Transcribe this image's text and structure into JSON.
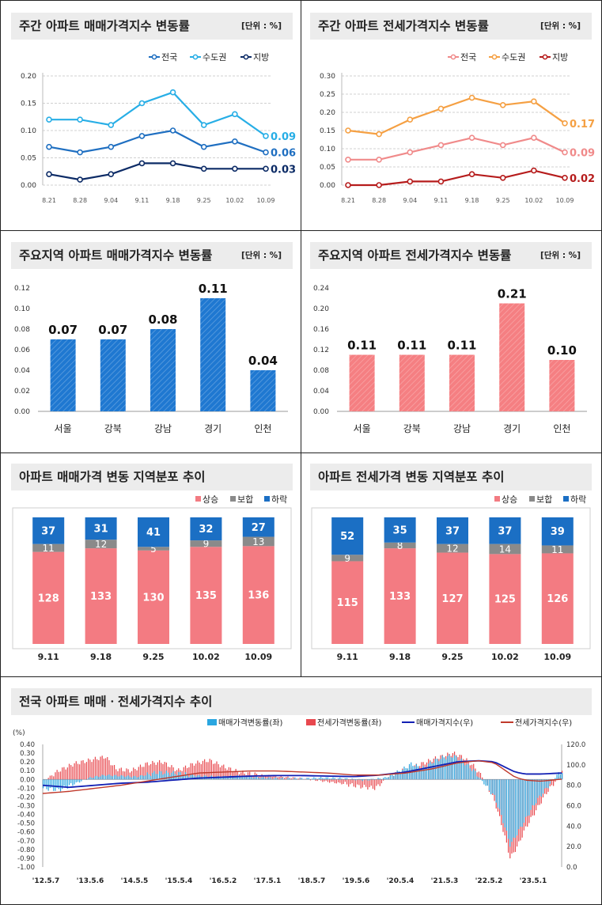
{
  "panels": {
    "p1": {
      "title": "주간 아파트 매매가격지수 변동률",
      "unit": "[단위 : %]"
    },
    "p2": {
      "title": "주간 아파트 전세가격지수 변동률",
      "unit": "[단위 : %]"
    },
    "p3": {
      "title": "주요지역 아파트 매매가격지수 변동률",
      "unit": "[단위 : %]"
    },
    "p4": {
      "title": "주요지역 아파트 전세가격지수 변동률",
      "unit": "[단위 : %]"
    },
    "p5": {
      "title": "아파트 매매가격 변동 지역분포 추이",
      "unit": ""
    },
    "p6": {
      "title": "아파트 전세가격 변동 지역분포 추이",
      "unit": ""
    },
    "p7": {
      "title": "전국 아파트 매매ㆍ전세가격지수 추이",
      "unit": ""
    }
  },
  "colors": {
    "nation_sale": "#1f6fc1",
    "capital_sale": "#27aee6",
    "local_sale": "#0c2b66",
    "nation_jeonse": "#f08a8a",
    "capital_jeonse": "#f5a043",
    "local_jeonse": "#b61c1c",
    "bar_blue": "#1f78d1",
    "bar_red": "#f57f82",
    "rise": "#f37b82",
    "flat": "#8a8a8a",
    "fall": "#1b6fc4",
    "idx_sale": "#1220b4",
    "idx_jeonse": "#c0392b",
    "chg_sale": "#2aa6e0",
    "chg_jeonse": "#e8484e"
  },
  "chart_data": [
    {
      "type": "line",
      "x": [
        "8.21",
        "8.28",
        "9.04",
        "9.11",
        "9.18",
        "9.25",
        "10.02",
        "10.09"
      ],
      "series": [
        {
          "name": "전국",
          "values": [
            0.07,
            0.06,
            0.07,
            0.09,
            0.1,
            0.07,
            0.08,
            0.06
          ],
          "end_label": "0.06"
        },
        {
          "name": "수도권",
          "values": [
            0.12,
            0.12,
            0.11,
            0.15,
            0.17,
            0.11,
            0.13,
            0.09
          ],
          "end_label": "0.09"
        },
        {
          "name": "지방",
          "values": [
            0.02,
            0.01,
            0.02,
            0.04,
            0.04,
            0.03,
            0.03,
            0.03
          ],
          "end_label": "0.03"
        }
      ],
      "yticks": [
        "0.00",
        "0.05",
        "0.10",
        "0.15",
        "0.20"
      ],
      "ylim": [
        0,
        0.2
      ],
      "legend": "top-right"
    },
    {
      "type": "line",
      "x": [
        "8.21",
        "8.28",
        "9.04",
        "9.11",
        "9.18",
        "9.25",
        "10.02",
        "10.09"
      ],
      "series": [
        {
          "name": "전국",
          "values": [
            0.07,
            0.07,
            0.09,
            0.11,
            0.13,
            0.11,
            0.13,
            0.09
          ],
          "end_label": "0.09"
        },
        {
          "name": "수도권",
          "values": [
            0.15,
            0.14,
            0.18,
            0.21,
            0.24,
            0.22,
            0.23,
            0.17
          ],
          "end_label": "0.17"
        },
        {
          "name": "지방",
          "values": [
            0.0,
            0.0,
            0.01,
            0.01,
            0.03,
            0.02,
            0.04,
            0.02
          ],
          "end_label": "0.02"
        }
      ],
      "yticks": [
        "0.00",
        "0.05",
        "0.10",
        "0.15",
        "0.20",
        "0.25",
        "0.30"
      ],
      "ylim": [
        0,
        0.3
      ],
      "legend": "top-right"
    },
    {
      "type": "bar",
      "categories": [
        "서울",
        "강북",
        "강남",
        "경기",
        "인천"
      ],
      "values": [
        0.07,
        0.07,
        0.08,
        0.11,
        0.04
      ],
      "labels": [
        "0.07",
        "0.07",
        "0.08",
        "0.11",
        "0.04"
      ],
      "yticks": [
        "0.00",
        "0.02",
        "0.04",
        "0.06",
        "0.08",
        "0.10",
        "0.12"
      ],
      "ylim": [
        0,
        0.12
      ]
    },
    {
      "type": "bar",
      "categories": [
        "서울",
        "강북",
        "강남",
        "경기",
        "인천"
      ],
      "values": [
        0.11,
        0.11,
        0.11,
        0.21,
        0.1
      ],
      "labels": [
        "0.11",
        "0.11",
        "0.11",
        "0.21",
        "0.10"
      ],
      "yticks": [
        "0.00",
        "0.04",
        "0.08",
        "0.12",
        "0.16",
        "0.20",
        "0.24"
      ],
      "ylim": [
        0,
        0.24
      ]
    },
    {
      "type": "bar",
      "stacked": true,
      "categories": [
        "9.11",
        "9.18",
        "9.25",
        "10.02",
        "10.09"
      ],
      "series": [
        {
          "name": "상승",
          "values": [
            128,
            133,
            130,
            135,
            136
          ]
        },
        {
          "name": "보합",
          "values": [
            11,
            12,
            5,
            9,
            13
          ]
        },
        {
          "name": "하락",
          "values": [
            37,
            31,
            41,
            32,
            27
          ]
        }
      ],
      "legend": "top-right"
    },
    {
      "type": "bar",
      "stacked": true,
      "categories": [
        "9.11",
        "9.18",
        "9.25",
        "10.02",
        "10.09"
      ],
      "series": [
        {
          "name": "상승",
          "values": [
            115,
            133,
            127,
            125,
            126
          ]
        },
        {
          "name": "보합",
          "values": [
            9,
            8,
            12,
            14,
            11
          ]
        },
        {
          "name": "하락",
          "values": [
            52,
            35,
            37,
            37,
            39
          ]
        }
      ],
      "legend": "top-right"
    },
    {
      "type": "line",
      "left_axis_label": "(%)",
      "left_ticks": [
        "0.40",
        "0.30",
        "0.20",
        "0.10",
        "0.00",
        "-0.10",
        "-0.20",
        "-0.30",
        "-0.40",
        "-0.50",
        "-0.60",
        "-0.70",
        "-0.80",
        "-0.90",
        "-1.00"
      ],
      "right_ticks": [
        "120.0",
        "100.0",
        "80.0",
        "60.0",
        "40.0",
        "20.0",
        "0.0"
      ],
      "x_ticks": [
        "'12.5.7",
        "'13.5.6",
        "'14.5.5",
        "'15.5.4",
        "'16.5.2",
        "'17.5.1",
        "'18.5.7",
        "'19.5.6",
        "'20.5.4",
        "'21.5.3",
        "'22.5.2",
        "'23.5.1"
      ],
      "ylim_left": [
        -1.0,
        0.4
      ],
      "ylim_right": [
        0,
        120
      ],
      "series": [
        {
          "name": "매매가격변동률(좌)",
          "kind": "bar",
          "axis": "left",
          "keypoints": [
            [
              0,
              -0.1
            ],
            [
              0.03,
              -0.12
            ],
            [
              0.06,
              -0.05
            ],
            [
              0.09,
              0.02
            ],
            [
              0.12,
              0.05
            ],
            [
              0.15,
              0.04
            ],
            [
              0.18,
              0.03
            ],
            [
              0.22,
              0.08
            ],
            [
              0.26,
              0.07
            ],
            [
              0.3,
              0.04
            ],
            [
              0.34,
              0.03
            ],
            [
              0.38,
              0.04
            ],
            [
              0.42,
              0.02
            ],
            [
              0.46,
              0.01
            ],
            [
              0.5,
              0.01
            ],
            [
              0.54,
              0.02
            ],
            [
              0.58,
              0.01
            ],
            [
              0.62,
              -0.01
            ],
            [
              0.66,
              0.02
            ],
            [
              0.69,
              0.1
            ],
            [
              0.71,
              0.18
            ],
            [
              0.73,
              0.12
            ],
            [
              0.75,
              0.2
            ],
            [
              0.77,
              0.25
            ],
            [
              0.79,
              0.27
            ],
            [
              0.81,
              0.2
            ],
            [
              0.83,
              0.1
            ],
            [
              0.85,
              -0.05
            ],
            [
              0.87,
              -0.2
            ],
            [
              0.885,
              -0.45
            ],
            [
              0.9,
              -0.75
            ],
            [
              0.915,
              -0.6
            ],
            [
              0.93,
              -0.45
            ],
            [
              0.95,
              -0.25
            ],
            [
              0.97,
              -0.1
            ],
            [
              0.99,
              0.05
            ],
            [
              1.0,
              0.09
            ]
          ]
        },
        {
          "name": "전세가격변동률(좌)",
          "kind": "bar",
          "axis": "left",
          "keypoints": [
            [
              0,
              -0.02
            ],
            [
              0.03,
              0.1
            ],
            [
              0.06,
              0.18
            ],
            [
              0.09,
              0.22
            ],
            [
              0.12,
              0.26
            ],
            [
              0.14,
              0.12
            ],
            [
              0.17,
              0.1
            ],
            [
              0.2,
              0.18
            ],
            [
              0.23,
              0.2
            ],
            [
              0.26,
              0.1
            ],
            [
              0.29,
              0.18
            ],
            [
              0.32,
              0.22
            ],
            [
              0.35,
              0.14
            ],
            [
              0.38,
              0.08
            ],
            [
              0.42,
              0.05
            ],
            [
              0.46,
              0.03
            ],
            [
              0.5,
              0.01
            ],
            [
              0.54,
              -0.02
            ],
            [
              0.58,
              -0.05
            ],
            [
              0.61,
              -0.08
            ],
            [
              0.64,
              -0.1
            ],
            [
              0.67,
              0.05
            ],
            [
              0.7,
              0.12
            ],
            [
              0.73,
              0.18
            ],
            [
              0.76,
              0.25
            ],
            [
              0.79,
              0.3
            ],
            [
              0.81,
              0.25
            ],
            [
              0.83,
              0.15
            ],
            [
              0.85,
              0.0
            ],
            [
              0.87,
              -0.25
            ],
            [
              0.885,
              -0.55
            ],
            [
              0.9,
              -0.9
            ],
            [
              0.915,
              -0.75
            ],
            [
              0.93,
              -0.55
            ],
            [
              0.95,
              -0.35
            ],
            [
              0.97,
              -0.15
            ],
            [
              0.99,
              0.0
            ],
            [
              1.0,
              0.09
            ]
          ]
        },
        {
          "name": "매매가격지수(우)",
          "kind": "line",
          "axis": "right",
          "keypoints": [
            [
              0,
              80
            ],
            [
              0.05,
              78
            ],
            [
              0.1,
              80
            ],
            [
              0.15,
              82
            ],
            [
              0.2,
              83
            ],
            [
              0.25,
              85
            ],
            [
              0.3,
              87
            ],
            [
              0.35,
              88
            ],
            [
              0.4,
              89
            ],
            [
              0.45,
              89.5
            ],
            [
              0.5,
              89.5
            ],
            [
              0.55,
              89
            ],
            [
              0.6,
              88.5
            ],
            [
              0.65,
              90
            ],
            [
              0.7,
              93
            ],
            [
              0.75,
              98
            ],
            [
              0.8,
              103
            ],
            [
              0.84,
              104
            ],
            [
              0.87,
              103
            ],
            [
              0.89,
              98
            ],
            [
              0.91,
              93
            ],
            [
              0.93,
              91
            ],
            [
              0.96,
              91
            ],
            [
              1.0,
              92
            ]
          ]
        },
        {
          "name": "전세가격지수(우)",
          "kind": "line",
          "axis": "right",
          "keypoints": [
            [
              0,
              72
            ],
            [
              0.05,
              74
            ],
            [
              0.1,
              77
            ],
            [
              0.15,
              80
            ],
            [
              0.2,
              84
            ],
            [
              0.25,
              88
            ],
            [
              0.3,
              92
            ],
            [
              0.35,
              93
            ],
            [
              0.4,
              94
            ],
            [
              0.45,
              94
            ],
            [
              0.5,
              93
            ],
            [
              0.55,
              92
            ],
            [
              0.6,
              90
            ],
            [
              0.65,
              90
            ],
            [
              0.7,
              92
            ],
            [
              0.75,
              96
            ],
            [
              0.8,
              102
            ],
            [
              0.84,
              104
            ],
            [
              0.87,
              102
            ],
            [
              0.89,
              95
            ],
            [
              0.91,
              88
            ],
            [
              0.93,
              85
            ],
            [
              0.96,
              84
            ],
            [
              1.0,
              86
            ]
          ]
        }
      ],
      "legend": "top-right"
    }
  ]
}
